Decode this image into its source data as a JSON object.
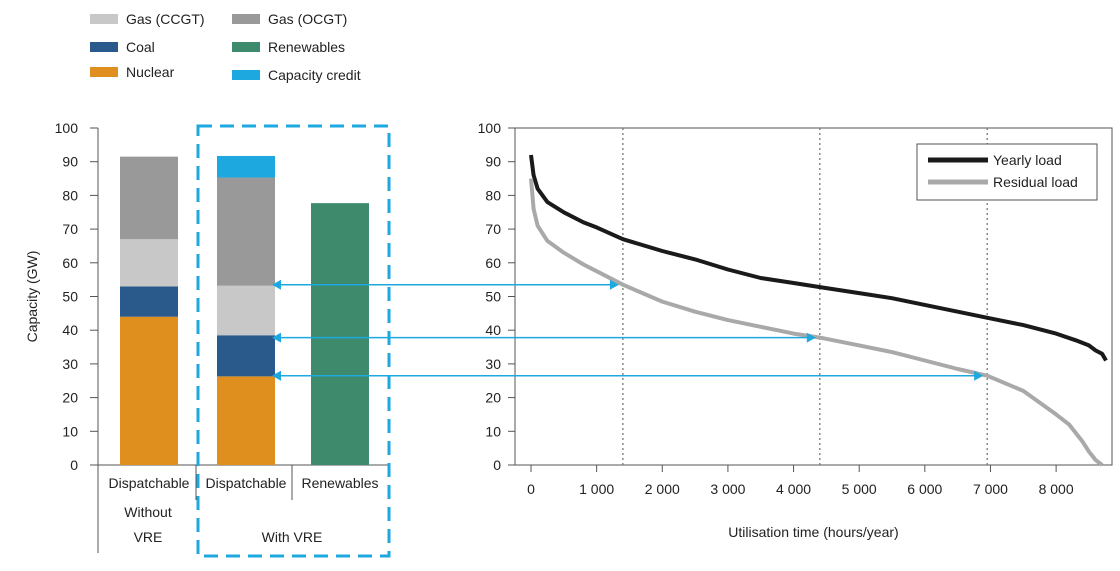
{
  "chart_data": [
    {
      "type": "bar",
      "stacked": true,
      "ylabel": "Capacity (GW)",
      "ylim": [
        0,
        100
      ],
      "yticks": [
        0,
        10,
        20,
        30,
        40,
        50,
        60,
        70,
        80,
        90,
        100
      ],
      "legend": [
        {
          "name": "Gas (CCGT)",
          "color": "#c8c8c8"
        },
        {
          "name": "Gas (OCGT)",
          "color": "#999999"
        },
        {
          "name": "Coal",
          "color": "#2a5a8c"
        },
        {
          "name": "Renewables",
          "color": "#3d8a6c"
        },
        {
          "name": "Nuclear",
          "color": "#de8f1d"
        },
        {
          "name": "Capacity credit",
          "color": "#1da8e0"
        }
      ],
      "bars": [
        {
          "category": "Dispatchable",
          "segments": [
            {
              "series": "Nuclear",
              "value": 44
            },
            {
              "series": "Coal",
              "value": 9
            },
            {
              "series": "Gas (CCGT)",
              "value": 14
            },
            {
              "series": "Gas (OCGT)",
              "value": 24.5
            }
          ]
        },
        {
          "category": "Dispatchable",
          "segments": [
            {
              "series": "Nuclear",
              "value": 26.3
            },
            {
              "series": "Coal",
              "value": 12.2
            },
            {
              "series": "Gas (CCGT)",
              "value": 14.7
            },
            {
              "series": "Gas (OCGT)",
              "value": 32.1
            },
            {
              "series": "Capacity credit",
              "value": 6.4
            }
          ]
        },
        {
          "category": "Renewables",
          "segments": [
            {
              "series": "Renewables",
              "value": 77.7
            }
          ]
        }
      ],
      "groups": [
        {
          "label_lines": [
            "Without",
            "VRE"
          ]
        },
        {
          "label_lines": [
            "With VRE"
          ]
        }
      ]
    },
    {
      "type": "line",
      "xlabel": "Utilisation time (hours/year)",
      "xlim": [
        0,
        8760
      ],
      "ylim": [
        0,
        100
      ],
      "xticks": [
        0,
        1000,
        2000,
        3000,
        4000,
        5000,
        6000,
        7000,
        8000
      ],
      "xtick_labels": [
        "0",
        "1 000",
        "2 000",
        "3 000",
        "4 000",
        "5 000",
        "6 000",
        "7 000",
        "8 000"
      ],
      "yticks": [
        0,
        10,
        20,
        30,
        40,
        50,
        60,
        70,
        80,
        90,
        100
      ],
      "vlines": [
        1400,
        4400,
        6950
      ],
      "legend_position": "top-right",
      "series": [
        {
          "name": "Yearly load",
          "color": "#1a1a1a",
          "x": [
            0,
            40,
            100,
            250,
            500,
            800,
            1000,
            1400,
            2000,
            2500,
            3000,
            3500,
            4000,
            4500,
            5000,
            5500,
            6000,
            6500,
            7000,
            7500,
            8000,
            8300,
            8500,
            8600,
            8700,
            8760
          ],
          "y": [
            92,
            86,
            82,
            78,
            75,
            72,
            70.5,
            67,
            63.5,
            61,
            58,
            55.5,
            54,
            52.5,
            51,
            49.5,
            47.5,
            45.5,
            43.5,
            41.5,
            39,
            37,
            35.5,
            34,
            33,
            31
          ]
        },
        {
          "name": "Residual load",
          "color": "#a9a9a9",
          "x": [
            0,
            40,
            100,
            250,
            500,
            800,
            1000,
            1400,
            2000,
            2500,
            3000,
            3500,
            4000,
            4400,
            5000,
            5500,
            6000,
            6500,
            6950,
            7500,
            8000,
            8200,
            8400,
            8500,
            8600,
            8700
          ],
          "y": [
            85,
            76,
            71,
            66.5,
            63,
            59.5,
            57.5,
            53.5,
            48.5,
            45.5,
            43,
            41,
            39,
            37.8,
            35.5,
            33.5,
            31,
            28.5,
            26.5,
            22,
            15,
            12,
            7,
            4,
            1.5,
            0
          ]
        }
      ]
    }
  ]
}
